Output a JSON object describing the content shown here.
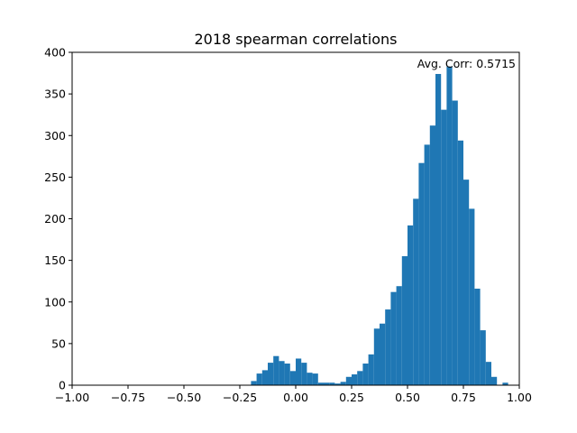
{
  "chart_data": {
    "type": "bar",
    "title": "2018 spearman correlations",
    "xlabel": "",
    "ylabel": "",
    "xlim": [
      -1.0,
      1.0
    ],
    "ylim": [
      0,
      400
    ],
    "bin_width": 0.025,
    "x_ticks": [
      "−1.00",
      "−0.75",
      "−0.50",
      "−0.25",
      "0.00",
      "0.25",
      "0.50",
      "0.75",
      "1.00"
    ],
    "x_tick_values": [
      -1.0,
      -0.75,
      -0.5,
      -0.25,
      0.0,
      0.25,
      0.5,
      0.75,
      1.0
    ],
    "y_ticks": [
      "0",
      "50",
      "100",
      "150",
      "200",
      "250",
      "300",
      "350",
      "400"
    ],
    "y_tick_values": [
      0,
      50,
      100,
      150,
      200,
      250,
      300,
      350,
      400
    ],
    "bins": [
      {
        "x": -0.2,
        "value": 5
      },
      {
        "x": -0.175,
        "value": 14
      },
      {
        "x": -0.15,
        "value": 18
      },
      {
        "x": -0.125,
        "value": 27
      },
      {
        "x": -0.1,
        "value": 35
      },
      {
        "x": -0.075,
        "value": 29
      },
      {
        "x": -0.05,
        "value": 26
      },
      {
        "x": -0.025,
        "value": 17
      },
      {
        "x": 0.0,
        "value": 32
      },
      {
        "x": 0.025,
        "value": 27
      },
      {
        "x": 0.05,
        "value": 15
      },
      {
        "x": 0.075,
        "value": 14
      },
      {
        "x": 0.1,
        "value": 3
      },
      {
        "x": 0.125,
        "value": 3
      },
      {
        "x": 0.15,
        "value": 3
      },
      {
        "x": 0.175,
        "value": 2
      },
      {
        "x": 0.2,
        "value": 4
      },
      {
        "x": 0.225,
        "value": 10
      },
      {
        "x": 0.25,
        "value": 13
      },
      {
        "x": 0.275,
        "value": 17
      },
      {
        "x": 0.3,
        "value": 26
      },
      {
        "x": 0.325,
        "value": 37
      },
      {
        "x": 0.35,
        "value": 68
      },
      {
        "x": 0.375,
        "value": 74
      },
      {
        "x": 0.4,
        "value": 91
      },
      {
        "x": 0.425,
        "value": 112
      },
      {
        "x": 0.45,
        "value": 119
      },
      {
        "x": 0.475,
        "value": 155
      },
      {
        "x": 0.5,
        "value": 192
      },
      {
        "x": 0.525,
        "value": 224
      },
      {
        "x": 0.55,
        "value": 267
      },
      {
        "x": 0.575,
        "value": 289
      },
      {
        "x": 0.6,
        "value": 312
      },
      {
        "x": 0.625,
        "value": 374
      },
      {
        "x": 0.65,
        "value": 331
      },
      {
        "x": 0.675,
        "value": 383
      },
      {
        "x": 0.7,
        "value": 342
      },
      {
        "x": 0.725,
        "value": 294
      },
      {
        "x": 0.75,
        "value": 247
      },
      {
        "x": 0.775,
        "value": 212
      },
      {
        "x": 0.8,
        "value": 116
      },
      {
        "x": 0.825,
        "value": 66
      },
      {
        "x": 0.85,
        "value": 28
      },
      {
        "x": 0.875,
        "value": 10
      },
      {
        "x": 0.925,
        "value": 3
      }
    ],
    "annotation": "Avg. Corr: 0.5715",
    "bar_color": "#1f77b4",
    "grid": false,
    "legend": "none"
  }
}
